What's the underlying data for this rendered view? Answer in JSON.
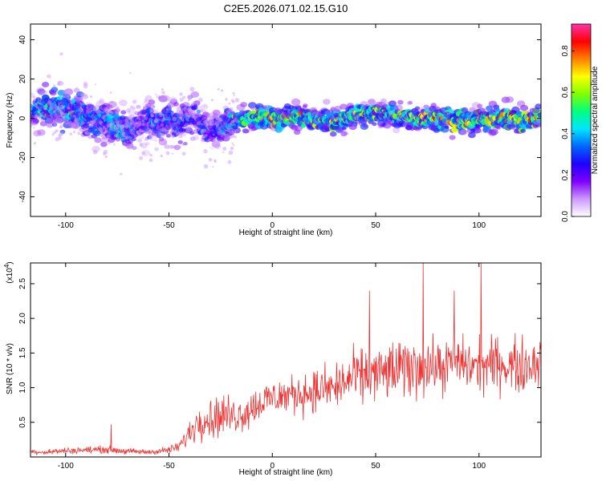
{
  "page_title": "C2E5.2026.071.02.15.G10",
  "chart_data": [
    {
      "type": "heatmap",
      "name": "spectrogram",
      "title": "C2E5.2026.071.02.15.G10",
      "xlabel": "Height of straight line (km)",
      "ylabel": "Frequency (Hz)",
      "xlim": [
        -117,
        130
      ],
      "ylim": [
        -50,
        48
      ],
      "xticks": [
        -100,
        -50,
        0,
        50,
        100
      ],
      "yticks": [
        -40,
        -20,
        0,
        20,
        40
      ],
      "xtick_labels": [
        "-100",
        "-50",
        "0",
        "50",
        "100"
      ],
      "ytick_labels": [
        "-40",
        "-20",
        "0",
        "20",
        "40"
      ],
      "colorbar": {
        "label": "Normalized spectral amplitude",
        "range": [
          0.0,
          0.93
        ],
        "ticks": [
          0.0,
          0.2,
          0.4,
          0.6,
          0.8
        ],
        "tick_labels": [
          "0.0",
          "0.2",
          "0.4",
          "0.6",
          "0.8"
        ],
        "colormap": [
          "#ffffff",
          "#cc99ff",
          "#7f00ff",
          "#1f00ff",
          "#0066ff",
          "#00e5ff",
          "#00ff80",
          "#80ff00",
          "#ffff00",
          "#ff8000",
          "#ff0000",
          "#ff33aa"
        ]
      },
      "ridge": {
        "x": [
          -117,
          -110,
          -100,
          -90,
          -80,
          -75,
          -70,
          -65,
          -60,
          -55,
          -50,
          -45,
          -40,
          -35,
          -30,
          -25,
          -20,
          -15,
          -10,
          0,
          10,
          20,
          30,
          40,
          50,
          60,
          70,
          80,
          90,
          100,
          110,
          120,
          130
        ],
        "freq": [
          3,
          6,
          4,
          1,
          -2,
          -5,
          -6,
          -3,
          -1,
          -3,
          0,
          -4,
          2,
          -3,
          -6,
          -4,
          -2,
          0,
          0,
          0,
          0,
          0,
          -1,
          1,
          3,
          1,
          0,
          0,
          -2,
          -1,
          0,
          0,
          0
        ],
        "amplitude": [
          0.45,
          0.5,
          0.55,
          0.45,
          0.4,
          0.55,
          0.45,
          0.3,
          0.35,
          0.4,
          0.45,
          0.4,
          0.35,
          0.4,
          0.3,
          0.45,
          0.5,
          0.6,
          0.75,
          0.85,
          0.8,
          0.65,
          0.7,
          0.65,
          0.7,
          0.6,
          0.7,
          0.75,
          0.8,
          0.7,
          0.8,
          0.85,
          0.8
        ]
      }
    },
    {
      "type": "line",
      "name": "snr",
      "xlabel": "Height of straight line (km)",
      "ylabel": "SNR (10 * v/v)",
      "scale_label": "(x10",
      "scale_exponent": "4",
      "scale_suffix": ")",
      "line_color": "#ee3333",
      "xlim": [
        -117,
        130
      ],
      "ylim": [
        0,
        2.8
      ],
      "xticks": [
        -100,
        -50,
        0,
        50,
        100
      ],
      "yticks": [
        0.5,
        1.0,
        1.5,
        2.0,
        2.5
      ],
      "xtick_labels": [
        "-100",
        "-50",
        "0",
        "50",
        "100"
      ],
      "ytick_labels": [
        "0.5",
        "1.0",
        "1.5",
        "2.0",
        "2.5"
      ],
      "series": [
        {
          "name": "SNR",
          "x": [
            -117,
            -110,
            -100,
            -90,
            -80,
            -70,
            -60,
            -50,
            -45,
            -40,
            -35,
            -30,
            -25,
            -20,
            -15,
            -10,
            -5,
            0,
            10,
            20,
            30,
            40,
            50,
            60,
            70,
            80,
            90,
            100,
            110,
            120,
            130
          ],
          "y": [
            0.08,
            0.07,
            0.09,
            0.1,
            0.11,
            0.08,
            0.07,
            0.1,
            0.15,
            0.35,
            0.55,
            0.55,
            0.6,
            0.6,
            0.62,
            0.7,
            0.8,
            0.85,
            0.9,
            0.95,
            1.0,
            1.15,
            1.2,
            1.25,
            1.3,
            1.3,
            1.35,
            1.3,
            1.35,
            1.3,
            1.4
          ],
          "noise": [
            0.05,
            0.05,
            0.06,
            0.06,
            0.07,
            0.06,
            0.05,
            0.07,
            0.1,
            0.25,
            0.35,
            0.35,
            0.4,
            0.35,
            0.35,
            0.35,
            0.35,
            0.35,
            0.35,
            0.4,
            0.45,
            0.5,
            0.5,
            0.55,
            0.55,
            0.5,
            0.5,
            0.5,
            0.5,
            0.5,
            0.55
          ]
        }
      ],
      "peaks": [
        {
          "x": -78,
          "y": 0.47
        },
        {
          "x": 47,
          "y": 2.4
        },
        {
          "x": 73,
          "y": 2.8
        },
        {
          "x": 88,
          "y": 2.4
        },
        {
          "x": 101,
          "y": 2.8
        }
      ]
    }
  ]
}
